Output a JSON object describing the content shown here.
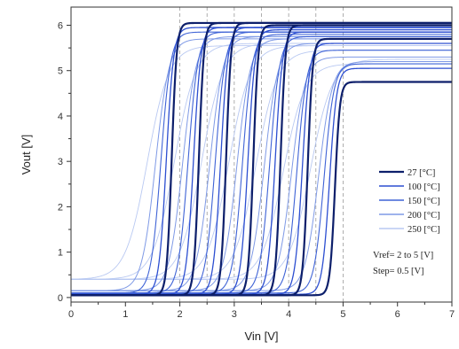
{
  "chart_data": {
    "type": "line",
    "xlabel": "Vin [V]",
    "ylabel": "Vout [V]",
    "xlim": [
      0,
      7
    ],
    "ylim": [
      -0.1,
      6.4
    ],
    "x_ticks": [
      "0",
      "1",
      "2",
      "3",
      "4",
      "5",
      "6",
      "7"
    ],
    "y_ticks": [
      "0",
      "1",
      "2",
      "3",
      "4",
      "5",
      "6"
    ],
    "reference_lines_x": [
      2,
      2.5,
      3,
      3.5,
      4,
      4.5,
      5
    ],
    "legend_position": "bottom-right",
    "colors": [
      "#0d1f6b",
      "#2d4fd1",
      "#3f63d6",
      "#7f9ae6",
      "#b9c9f2"
    ],
    "series": [
      {
        "name": "27 [°C]"
      },
      {
        "name": "100 [°C]"
      },
      {
        "name": "150 [°C]"
      },
      {
        "name": "200 [°C]"
      },
      {
        "name": "250 [°C]"
      }
    ],
    "params": {
      "vref": [
        2,
        2.5,
        3,
        3.5,
        4,
        4.5,
        5
      ],
      "transition_shift": [
        -0.15,
        -0.25,
        -0.35,
        -0.45,
        -0.6
      ],
      "steepness": [
        22,
        15,
        11,
        8,
        5
      ],
      "low_level": [
        0.05,
        0.07,
        0.1,
        0.15,
        0.4
      ],
      "high_level": [
        [
          6.05,
          5.95,
          5.85,
          5.7,
          5.55
        ],
        [
          6.05,
          5.95,
          5.85,
          5.75,
          5.6
        ],
        [
          6.05,
          5.95,
          5.85,
          5.75,
          5.6
        ],
        [
          6.0,
          5.9,
          5.8,
          5.7,
          5.55
        ],
        [
          6.0,
          5.85,
          5.75,
          5.6,
          5.45
        ],
        [
          5.7,
          5.6,
          5.45,
          5.3,
          5.15
        ],
        [
          4.75,
          5.05,
          5.15,
          5.2,
          5.25
        ]
      ]
    },
    "annotations": [
      "Vref= 2 to 5 [V]",
      "Step= 0.5 [V]"
    ]
  }
}
